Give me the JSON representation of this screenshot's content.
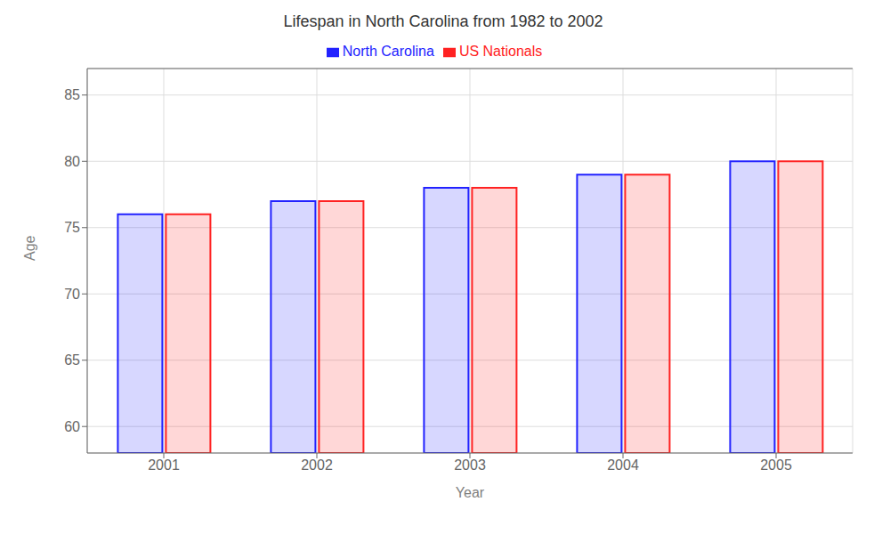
{
  "chart_data": {
    "type": "bar",
    "title": "Lifespan in North Carolina from 1982 to 2002",
    "xlabel": "Year",
    "ylabel": "Age",
    "categories": [
      "2001",
      "2002",
      "2003",
      "2004",
      "2005"
    ],
    "series": [
      {
        "name": "North Carolina",
        "color": "#2222ff",
        "values": [
          76,
          77,
          78,
          79,
          80
        ]
      },
      {
        "name": "US Nationals",
        "color": "#ff2222",
        "values": [
          76,
          77,
          78,
          79,
          80
        ]
      }
    ],
    "ylim": [
      58,
      87
    ],
    "yticks": [
      60,
      65,
      70,
      75,
      80,
      85
    ],
    "grid": true,
    "legend": "top"
  }
}
